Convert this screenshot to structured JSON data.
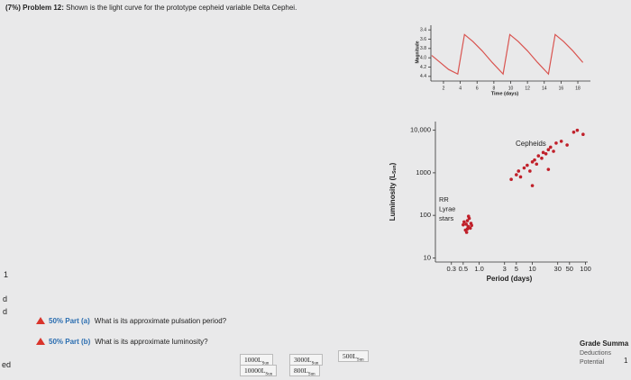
{
  "header": {
    "label": "(7%) Problem 12:",
    "text": "Shown is the light curve for the prototype cepheid variable Delta Cephei."
  },
  "light_curve": {
    "type": "line",
    "ylabel": "Magnitude",
    "xlabel": "Time (days)",
    "color": "#d9534f",
    "x": [
      0.6,
      1.6,
      2.6,
      3.7,
      4.5,
      5.5,
      6.6,
      7.8,
      9.1,
      9.9,
      10.9,
      12.0,
      13.2,
      14.5,
      15.3,
      16.3,
      17.4,
      18.6
    ],
    "values": [
      3.95,
      4.1,
      4.25,
      4.35,
      3.5,
      3.65,
      3.85,
      4.1,
      4.35,
      3.5,
      3.65,
      3.85,
      4.1,
      4.35,
      3.5,
      3.65,
      3.85,
      4.1
    ],
    "xlim": [
      0.5,
      19.5
    ],
    "ylim": [
      4.5,
      3.3
    ],
    "xticks": [
      2,
      4,
      6,
      8,
      10,
      12,
      14,
      16,
      18
    ],
    "yticks": [
      3.4,
      3.6,
      3.8,
      {
        "value": 4,
        "label": "4.0"
      },
      4.2,
      4.4
    ]
  },
  "pl_diagram": {
    "type": "scatter",
    "ylabel": "Luminosity (L",
    "ylabel_sub": "Sun",
    "ylabel_end": ")",
    "xlabel": "Period (days)",
    "color": "#c0202a",
    "log_x": true,
    "log_y": true,
    "x": [
      0.5,
      0.55,
      0.6,
      0.62,
      0.65,
      0.7,
      0.52,
      0.58,
      0.68,
      0.63,
      0.57,
      0.72,
      0.6,
      4,
      5,
      5.5,
      6,
      7,
      8,
      9,
      10,
      11,
      12,
      13,
      15,
      16,
      18,
      20,
      22,
      25,
      28,
      35,
      45,
      60,
      70,
      90,
      10,
      20
    ],
    "values": [
      60,
      45,
      75,
      55,
      85,
      65,
      70,
      40,
      50,
      95,
      62,
      58,
      48,
      700,
      900,
      1100,
      800,
      1300,
      1500,
      1100,
      1800,
      2000,
      1600,
      2500,
      2200,
      3000,
      2800,
      3500,
      4000,
      3200,
      5000,
      5500,
      4500,
      9000,
      10000,
      8000,
      500,
      1200
    ],
    "xlim": [
      0.15,
      110
    ],
    "ylim": [
      8,
      16000
    ],
    "xticks": [
      0.3,
      0.5,
      {
        "value": 1,
        "label": "1.0"
      },
      3,
      5,
      10,
      30,
      50,
      100
    ],
    "yticks": [
      10,
      100,
      1000,
      {
        "value": 10000,
        "label": "10,000"
      }
    ],
    "annotations": {
      "cepheids": "Cepheids",
      "rr_lyrae": [
        "RR",
        "Lyrae",
        "stars"
      ]
    }
  },
  "parts": [
    {
      "label": "50% Part (a)",
      "question": "What is its approximate pulsation period?"
    },
    {
      "label": "50% Part (b)",
      "question": "What is its approximate luminosity?"
    }
  ],
  "answers": [
    {
      "text": "1000L",
      "sub": "Sun"
    },
    {
      "text": "3000L",
      "sub": "Sun"
    },
    {
      "text": "500L",
      "sub": "Sun"
    },
    {
      "text": "10000L",
      "sub": "Sun"
    },
    {
      "text": "800L",
      "sub": "Sun"
    }
  ],
  "grade_summary": {
    "title": "Grade Summa",
    "deductions": "Deductions",
    "potential": "Potential",
    "value": "1"
  },
  "sidebar": [
    "1",
    "d",
    "d",
    "ed"
  ]
}
